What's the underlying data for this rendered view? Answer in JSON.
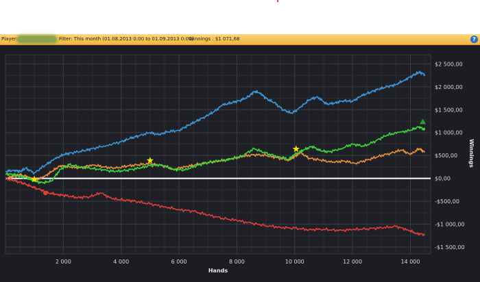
{
  "infobar": {
    "player_label": "Player:",
    "filter_text": "Filter:  This month (01.08.2013 0:00 to 01.09.2013 0:00)",
    "winnings_text": "Winnings : $1 071,68",
    "help_glyph": "?"
  },
  "chart_data": {
    "type": "line",
    "xlabel": "Hands",
    "ylabel": "Winnings",
    "xlim": [
      0,
      14700
    ],
    "ylim": [
      -1650,
      2700
    ],
    "x_ticks": [
      2000,
      4000,
      6000,
      8000,
      10000,
      12000,
      14000
    ],
    "x_tick_labels": [
      "2 000",
      "4 000",
      "6 000",
      "8 000",
      "10 000",
      "12 000",
      "14 000"
    ],
    "y_ticks": [
      2500,
      2000,
      1500,
      1000,
      500,
      0,
      -500,
      -1000,
      -1500
    ],
    "y_tick_labels": [
      "$2 500,00",
      "$2 000,00",
      "$1 500,00",
      "$1 000,00",
      "$500,00",
      "$0,00",
      "-$500,00",
      "-$1 000,00",
      "-$1 500,00"
    ],
    "grid": true,
    "zero_line_color": "#ffffff",
    "series": [
      {
        "color": "#3c96d8",
        "x": [
          0,
          300,
          500,
          700,
          1000,
          1400,
          1700,
          2000,
          2300,
          2700,
          3000,
          3500,
          4000,
          4300,
          4600,
          5000,
          5300,
          5600,
          6000,
          6300,
          6600,
          6900,
          7200,
          7500,
          7800,
          8100,
          8400,
          8600,
          8800,
          9000,
          9300,
          9600,
          9900,
          10200,
          10500,
          10800,
          11100,
          11400,
          11700,
          12000,
          12300,
          12600,
          12900,
          13200,
          13500,
          13800,
          14100,
          14300,
          14500
        ],
        "y": [
          150,
          180,
          150,
          220,
          120,
          300,
          420,
          520,
          560,
          600,
          650,
          720,
          800,
          870,
          930,
          1000,
          950,
          1020,
          1050,
          1150,
          1250,
          1350,
          1450,
          1600,
          1650,
          1700,
          1780,
          1900,
          1870,
          1750,
          1650,
          1500,
          1420,
          1550,
          1720,
          1780,
          1620,
          1650,
          1700,
          1680,
          1800,
          1880,
          1950,
          2000,
          2050,
          2150,
          2250,
          2320,
          2270
        ]
      },
      {
        "color": "#e8913a",
        "x": [
          0,
          300,
          500,
          800,
          1000,
          1300,
          1600,
          1900,
          2200,
          2600,
          3000,
          3400,
          3800,
          4200,
          4600,
          5000,
          5400,
          5800,
          6200,
          6600,
          7000,
          7400,
          7800,
          8200,
          8600,
          9000,
          9400,
          9800,
          10000,
          10200,
          10500,
          10900,
          11300,
          11700,
          12100,
          12500,
          12900,
          13300,
          13700,
          14000,
          14300,
          14500
        ],
        "y": [
          0,
          50,
          80,
          30,
          -40,
          20,
          150,
          280,
          250,
          230,
          300,
          250,
          220,
          270,
          300,
          320,
          280,
          200,
          250,
          300,
          350,
          380,
          420,
          480,
          520,
          500,
          450,
          400,
          480,
          560,
          440,
          400,
          350,
          380,
          330,
          400,
          480,
          550,
          620,
          520,
          650,
          570
        ]
      },
      {
        "color": "#3cd83c",
        "x": [
          0,
          300,
          500,
          800,
          1000,
          1300,
          1600,
          1900,
          2200,
          2600,
          3000,
          3400,
          3800,
          4200,
          4600,
          5000,
          5400,
          5800,
          6200,
          6600,
          7000,
          7400,
          7800,
          8200,
          8600,
          9000,
          9400,
          9800,
          10000,
          10300,
          10600,
          10900,
          11200,
          11600,
          12000,
          12400,
          12800,
          13200,
          13600,
          14000,
          14300,
          14500
        ],
        "y": [
          100,
          80,
          50,
          0,
          -60,
          -100,
          -50,
          200,
          300,
          250,
          220,
          180,
          150,
          180,
          220,
          280,
          300,
          200,
          180,
          280,
          350,
          380,
          420,
          500,
          650,
          550,
          480,
          420,
          520,
          620,
          700,
          600,
          580,
          650,
          750,
          700,
          820,
          950,
          1000,
          1050,
          1130,
          1060
        ]
      },
      {
        "color": "#e0403a",
        "x": [
          0,
          300,
          600,
          900,
          1200,
          1500,
          1800,
          2100,
          2500,
          2900,
          3300,
          3700,
          4100,
          4500,
          5000,
          5500,
          6000,
          6500,
          7000,
          7500,
          8000,
          8500,
          9000,
          9500,
          10000,
          10500,
          11000,
          11500,
          12000,
          12500,
          13000,
          13500,
          13900,
          14200,
          14500
        ],
        "y": [
          0,
          -50,
          -100,
          -180,
          -250,
          -320,
          -350,
          -380,
          -420,
          -400,
          -320,
          -450,
          -470,
          -500,
          -560,
          -620,
          -680,
          -720,
          -800,
          -870,
          -920,
          -980,
          -1030,
          -1070,
          -1090,
          -1120,
          -1110,
          -1140,
          -1120,
          -1100,
          -1080,
          -1050,
          -1120,
          -1200,
          -1230
        ]
      }
    ],
    "markers": [
      {
        "shape": "star",
        "color": "#f2e20d",
        "x": 1000,
        "y": -20
      },
      {
        "shape": "star",
        "color": "#f2e20d",
        "x": 5000,
        "y": 390
      },
      {
        "shape": "star",
        "color": "#f2e20d",
        "x": 10050,
        "y": 640
      },
      {
        "shape": "dot",
        "color": "#e0403a",
        "x": 1380,
        "y": -320
      },
      {
        "shape": "triangle",
        "color": "#2a9a2a",
        "x": 14430,
        "y": 1230
      }
    ]
  }
}
